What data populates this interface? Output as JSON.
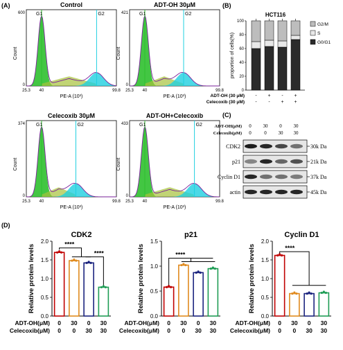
{
  "panels": {
    "A": "(A)",
    "B": "(B)",
    "C": "(C)",
    "D": "(D)"
  },
  "colors": {
    "green": "#2fc02f",
    "cyan": "#1fd0e0",
    "purple": "#7a1f9a",
    "olive": "#a7c23a",
    "bar_g0g1": "#2b2b2b",
    "bar_s": "#e8e8e8",
    "bar_g2m": "#bdbdbd",
    "red": "#c00000",
    "orange": "#e08a1e",
    "navy": "#1a237e",
    "dgreen": "#1f9d55"
  },
  "histograms": [
    {
      "title": "Control",
      "ymax": "600",
      "xticks": [
        "25.3",
        "40",
        "99.8"
      ],
      "g1": "G1",
      "g2": "G2",
      "xlabel": "PE-A (10³)",
      "ylabel": "Count"
    },
    {
      "title": "ADT-OH 30μM",
      "ymax": "421",
      "xticks": [
        "25.3",
        "40",
        "99.8"
      ],
      "g1": "G1",
      "g2": "G2",
      "xlabel": "PE-A (10³)",
      "ylabel": "Count"
    },
    {
      "title": "Celecoxib 30μM",
      "ymax": "374",
      "xticks": [
        "25.3",
        "40",
        "99.8"
      ],
      "g1": "G1",
      "g2": "G2",
      "xlabel": "PE-A (10³)",
      "ylabel": "Count"
    },
    {
      "title": "ADT-OH+Celecoxib",
      "ymax": "433",
      "xticks": [
        "25.3",
        "40",
        "99.8"
      ],
      "g1": "G1",
      "g2": "G2",
      "xlabel": "PE-A (10³)",
      "ylabel": "Count"
    }
  ],
  "chart_data": [
    {
      "type": "bar",
      "title": "HCT116",
      "ylabel": "proportion of cells(%)",
      "ylim": [
        0,
        100
      ],
      "yticks": [
        "0",
        "20",
        "40",
        "60",
        "80",
        "100"
      ],
      "legend": [
        "G2/M",
        "S",
        "G0/G1"
      ],
      "series": [
        {
          "name": "G0/G1",
          "values": [
            60,
            63,
            62,
            73
          ]
        },
        {
          "name": "S",
          "values": [
            10,
            9,
            9,
            6
          ]
        },
        {
          "name": "G2/M",
          "values": [
            30,
            28,
            29,
            21
          ]
        }
      ],
      "rows": [
        {
          "label": "ADT-OH (30 μM)",
          "values": [
            "-",
            "+",
            "-",
            "+"
          ]
        },
        {
          "label": "Celecoxib (30 μM)",
          "values": [
            "-",
            "-",
            "+",
            "+"
          ]
        }
      ]
    },
    {
      "type": "bar",
      "title": "CDK2",
      "ylabel": "Relative protein levels",
      "ylim": [
        0,
        2.0
      ],
      "yticks": [
        "0.0",
        "0.5",
        "1.0",
        "1.5",
        "2.0"
      ],
      "values": [
        1.7,
        1.48,
        1.42,
        0.77
      ],
      "sig": [
        "****",
        "****"
      ]
    },
    {
      "type": "bar",
      "title": "p21",
      "ylabel": "Relative protein levels",
      "ylim": [
        0,
        1.5
      ],
      "yticks": [
        "0.0",
        "0.5",
        "1.0",
        "1.5"
      ],
      "values": [
        0.58,
        1.02,
        0.87,
        0.95
      ],
      "sig": [
        "****"
      ]
    },
    {
      "type": "bar",
      "title": "Cyclin D1",
      "ylabel": "Relative protein levels",
      "ylim": [
        0,
        2.0
      ],
      "yticks": [
        "0.0",
        "0.5",
        "1.0",
        "1.5",
        "2.0"
      ],
      "values": [
        1.62,
        0.6,
        0.6,
        0.62
      ],
      "sig": [
        "****"
      ]
    }
  ],
  "treatment_rows": [
    {
      "label": "ADT-OH(μM)",
      "values": [
        "0",
        "30",
        "0",
        "30"
      ]
    },
    {
      "label": "Celecoxib(μM)",
      "values": [
        "0",
        "0",
        "30",
        "30"
      ]
    }
  ],
  "blot": {
    "rows": [
      {
        "label": "ADT-OH(μM)",
        "values": [
          "0",
          "30",
          "0",
          "30"
        ]
      },
      {
        "label": "Celecoxib(μM)",
        "values": [
          "0",
          "0",
          "30",
          "30"
        ]
      }
    ],
    "proteins": [
      "CDK2",
      "p21",
      "Cyclin D1",
      "actin"
    ],
    "sizes": [
      "30k Da",
      "21k Da",
      "37k Da",
      "45k Da"
    ]
  }
}
